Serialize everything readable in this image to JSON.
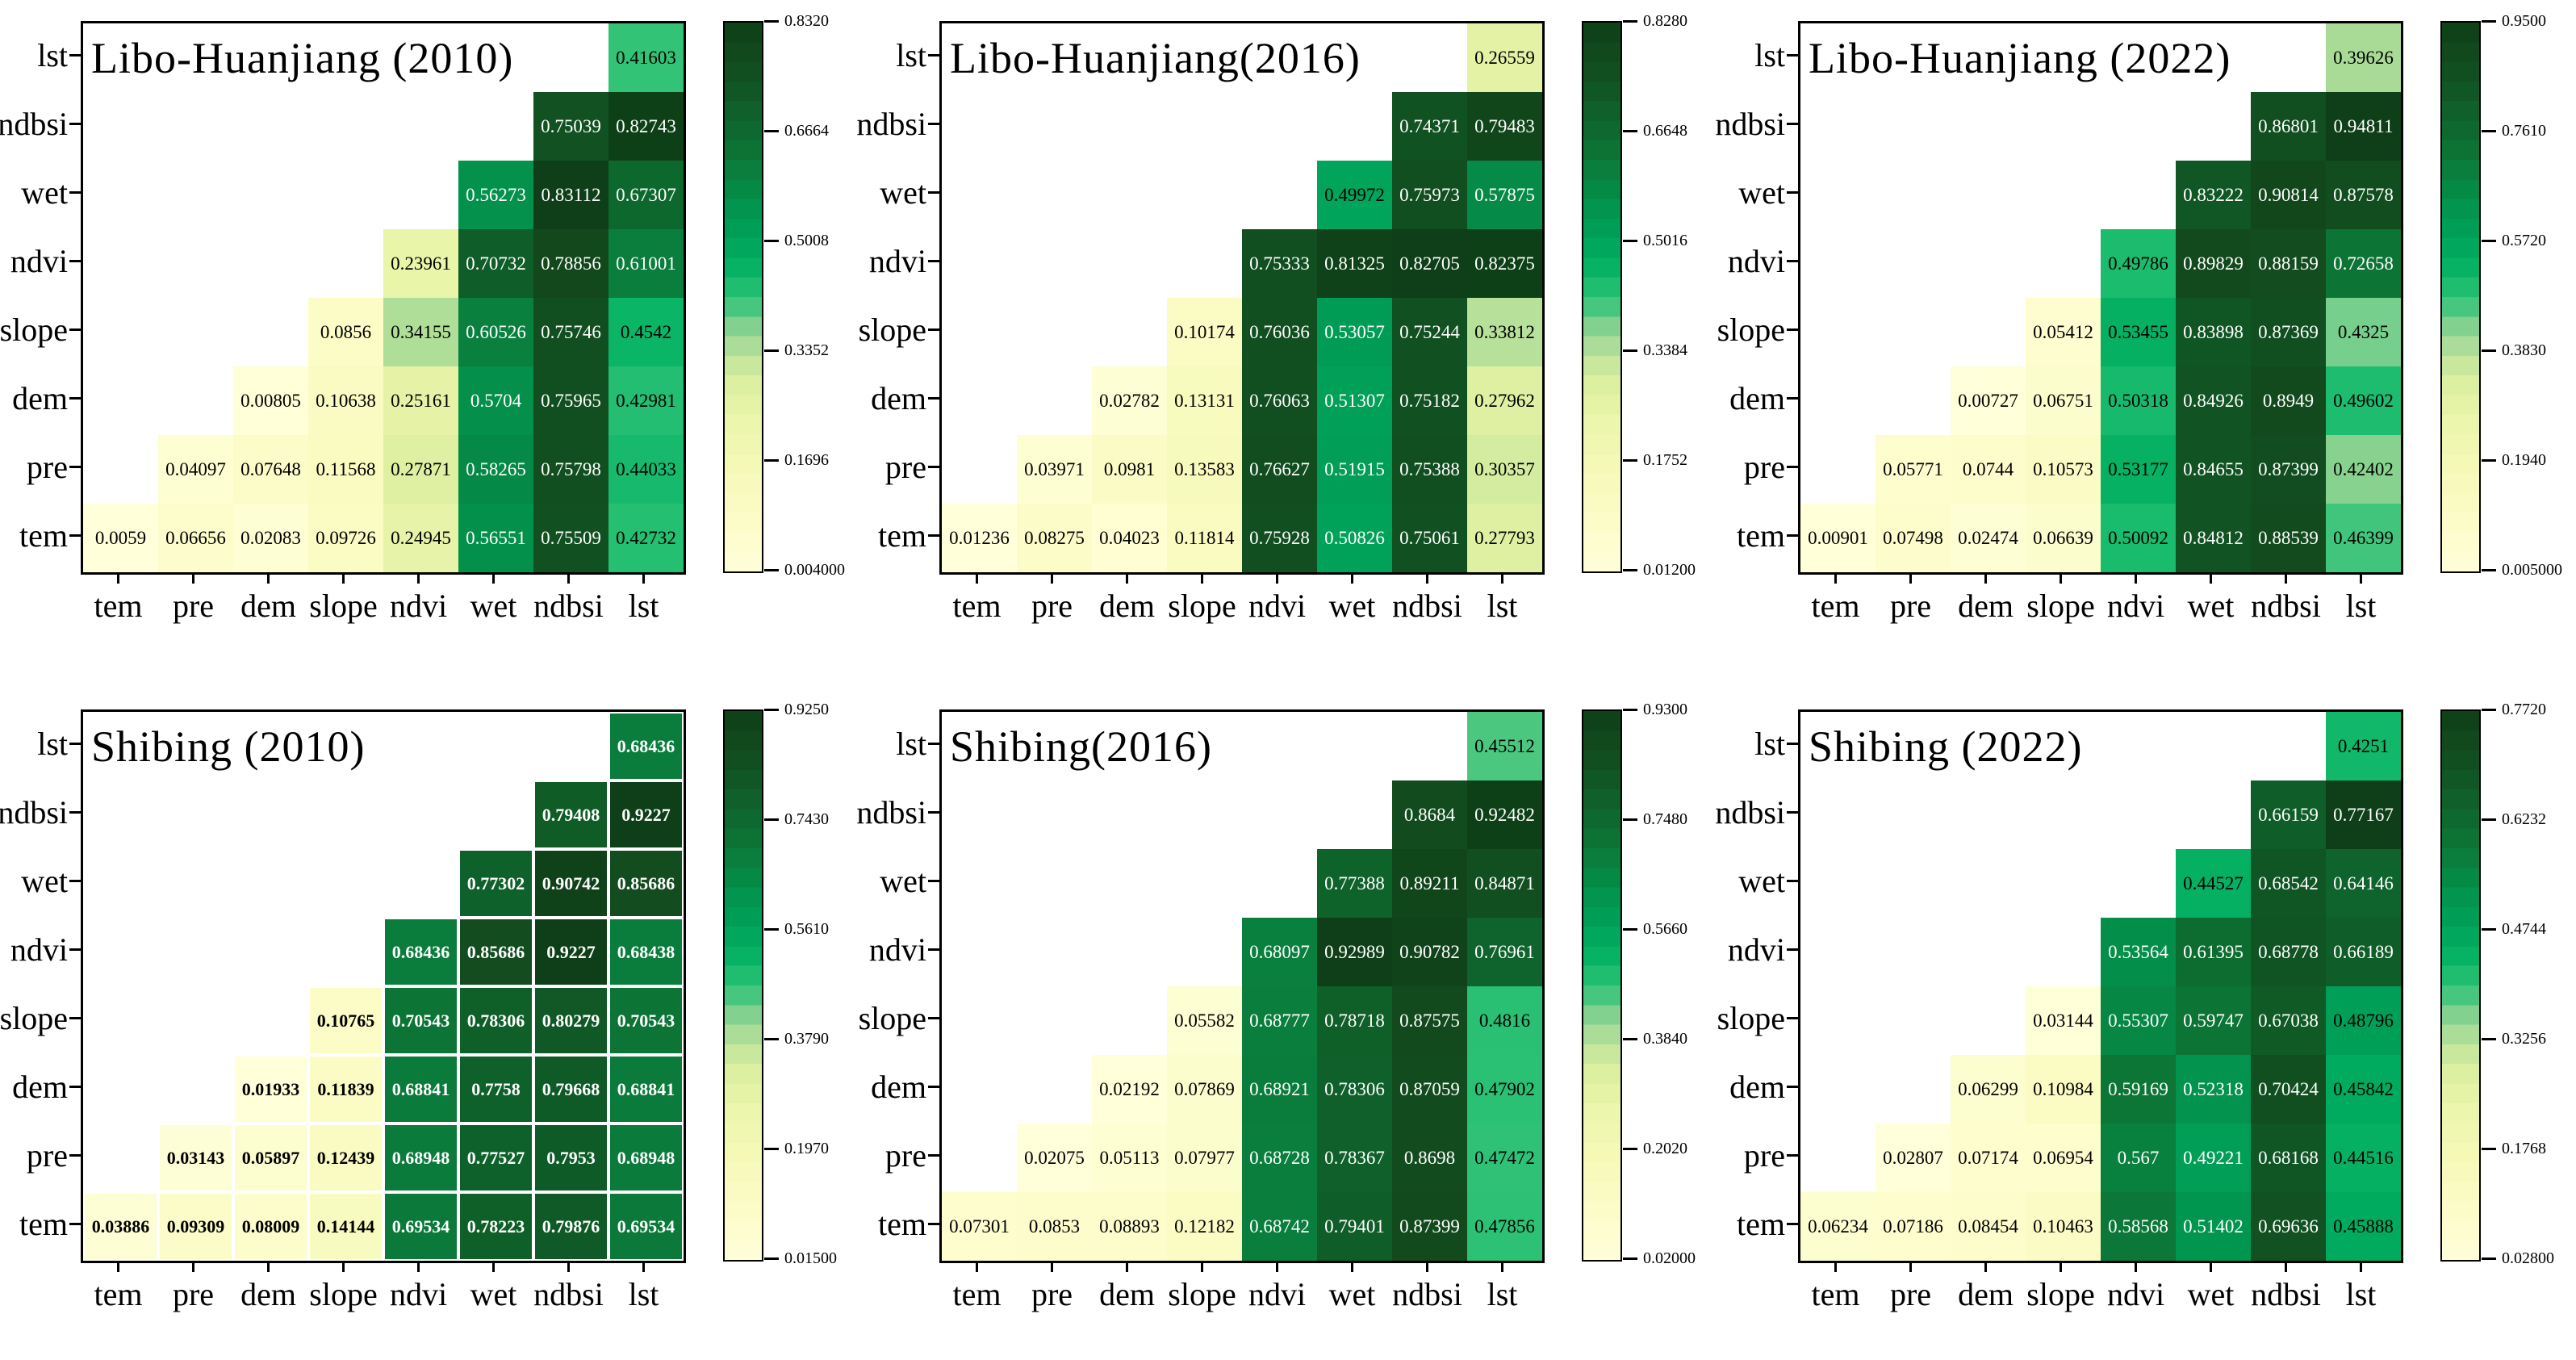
{
  "chart_data": {
    "type": "heatmap",
    "layout": "2 rows x 3 columns of lower-triangle correlation heatmaps, each with its own colorbar on the right",
    "x_labels": [
      "tem",
      "pre",
      "dem",
      "slope",
      "ndvi",
      "wet",
      "ndbsi",
      "lst"
    ],
    "y_labels": [
      "lst",
      "ndbsi",
      "wet",
      "ndvi",
      "slope",
      "dem",
      "pre",
      "tem"
    ],
    "colormap": {
      "name": "yellow-to-green (YlGn-like, banded)",
      "bands": 28,
      "anchors": [
        [
          0.0,
          "#ffffd9"
        ],
        [
          0.1,
          "#fbfcc6"
        ],
        [
          0.2,
          "#f4f9b5"
        ],
        [
          0.28,
          "#eaf5aa"
        ],
        [
          0.34,
          "#ddefa1"
        ],
        [
          0.37,
          "#cce99e"
        ],
        [
          0.4,
          "#b7e09a"
        ],
        [
          0.44,
          "#8ed392"
        ],
        [
          0.47,
          "#55c983"
        ],
        [
          0.5,
          "#2fc276"
        ],
        [
          0.54,
          "#0cb667"
        ],
        [
          0.58,
          "#00aa5e"
        ],
        [
          0.63,
          "#009c55"
        ],
        [
          0.68,
          "#03904b"
        ],
        [
          0.72,
          "#088240"
        ],
        [
          0.76,
          "#0c7536"
        ],
        [
          0.8,
          "#0d6a2f"
        ],
        [
          0.85,
          "#0f5d28"
        ],
        [
          0.9,
          "#115122"
        ],
        [
          0.95,
          "#12481c"
        ],
        [
          1.0,
          "#0e3f18"
        ]
      ]
    },
    "annotation_text_colors": {
      "dark_cells": "#ffffff",
      "light_cells": "#000000"
    },
    "panels": [
      {
        "title": "Libo-Huanjiang (2010)",
        "vmin": 0.004,
        "vmax": 0.832,
        "white_text_min_norm": 0.6,
        "grid_lines": false,
        "bold_values": false,
        "colorbar_ticks": [
          "0.8320",
          "0.6664",
          "0.5008",
          "0.3352",
          "0.1696",
          "0.004000"
        ],
        "rows": [
          {
            "label": "lst",
            "values": [
              null,
              null,
              null,
              null,
              null,
              null,
              null,
              "0.41603"
            ]
          },
          {
            "label": "ndbsi",
            "values": [
              null,
              null,
              null,
              null,
              null,
              null,
              "0.75039",
              "0.82743"
            ]
          },
          {
            "label": "wet",
            "values": [
              null,
              null,
              null,
              null,
              null,
              "0.56273",
              "0.83112",
              "0.67307"
            ]
          },
          {
            "label": "ndvi",
            "values": [
              null,
              null,
              null,
              null,
              "0.23961",
              "0.70732",
              "0.78856",
              "0.61001"
            ]
          },
          {
            "label": "slope",
            "values": [
              null,
              null,
              null,
              "0.0856",
              "0.34155",
              "0.60526",
              "0.75746",
              "0.4542"
            ]
          },
          {
            "label": "dem",
            "values": [
              null,
              null,
              "0.00805",
              "0.10638",
              "0.25161",
              "0.5704",
              "0.75965",
              "0.42981"
            ]
          },
          {
            "label": "pre",
            "values": [
              null,
              "0.04097",
              "0.07648",
              "0.11568",
              "0.27871",
              "0.58265",
              "0.75798",
              "0.44033"
            ]
          },
          {
            "label": "tem",
            "values": [
              "0.0059",
              "0.06656",
              "0.02083",
              "0.09726",
              "0.24945",
              "0.56551",
              "0.75509",
              "0.42732"
            ]
          }
        ]
      },
      {
        "title": "Libo-Huanjiang(2016)",
        "vmin": 0.012,
        "vmax": 0.828,
        "white_text_min_norm": 0.6,
        "grid_lines": false,
        "bold_values": false,
        "colorbar_ticks": [
          "0.8280",
          "0.6648",
          "0.5016",
          "0.3384",
          "0.1752",
          "0.01200"
        ],
        "rows": [
          {
            "label": "lst",
            "values": [
              null,
              null,
              null,
              null,
              null,
              null,
              null,
              "0.26559"
            ]
          },
          {
            "label": "ndbsi",
            "values": [
              null,
              null,
              null,
              null,
              null,
              null,
              "0.74371",
              "0.79483"
            ]
          },
          {
            "label": "wet",
            "values": [
              null,
              null,
              null,
              null,
              null,
              "0.49972",
              "0.75973",
              "0.57875"
            ]
          },
          {
            "label": "ndvi",
            "values": [
              null,
              null,
              null,
              null,
              "0.75333",
              "0.81325",
              "0.82705",
              "0.82375"
            ]
          },
          {
            "label": "slope",
            "values": [
              null,
              null,
              null,
              "0.10174",
              "0.76036",
              "0.53057",
              "0.75244",
              "0.33812"
            ]
          },
          {
            "label": "dem",
            "values": [
              null,
              null,
              "0.02782",
              "0.13131",
              "0.76063",
              "0.51307",
              "0.75182",
              "0.27962"
            ]
          },
          {
            "label": "pre",
            "values": [
              null,
              "0.03971",
              "0.0981",
              "0.13583",
              "0.76627",
              "0.51915",
              "0.75388",
              "0.30357"
            ]
          },
          {
            "label": "tem",
            "values": [
              "0.01236",
              "0.08275",
              "0.04023",
              "0.11814",
              "0.75928",
              "0.50826",
              "0.75061",
              "0.27793"
            ]
          }
        ]
      },
      {
        "title": "Libo-Huanjiang (2022)",
        "vmin": 0.005,
        "vmax": 0.95,
        "white_text_min_norm": 0.6,
        "grid_lines": false,
        "bold_values": false,
        "colorbar_ticks": [
          "0.9500",
          "0.7610",
          "0.5720",
          "0.3830",
          "0.1940",
          "0.005000"
        ],
        "rows": [
          {
            "label": "lst",
            "values": [
              null,
              null,
              null,
              null,
              null,
              null,
              null,
              "0.39626"
            ]
          },
          {
            "label": "ndbsi",
            "values": [
              null,
              null,
              null,
              null,
              null,
              null,
              "0.86801",
              "0.94811"
            ]
          },
          {
            "label": "wet",
            "values": [
              null,
              null,
              null,
              null,
              null,
              "0.83222",
              "0.90814",
              "0.87578"
            ]
          },
          {
            "label": "ndvi",
            "values": [
              null,
              null,
              null,
              null,
              "0.49786",
              "0.89829",
              "0.88159",
              "0.72658"
            ]
          },
          {
            "label": "slope",
            "values": [
              null,
              null,
              null,
              "0.05412",
              "0.53455",
              "0.83898",
              "0.87369",
              "0.4325"
            ]
          },
          {
            "label": "dem",
            "values": [
              null,
              null,
              "0.00727",
              "0.06751",
              "0.50318",
              "0.84926",
              "0.8949",
              "0.49602"
            ]
          },
          {
            "label": "pre",
            "values": [
              null,
              "0.05771",
              "0.0744",
              "0.10573",
              "0.53177",
              "0.84655",
              "0.87399",
              "0.42402"
            ]
          },
          {
            "label": "tem",
            "values": [
              "0.00901",
              "0.07498",
              "0.02474",
              "0.06639",
              "0.50092",
              "0.84812",
              "0.88539",
              "0.46399"
            ]
          }
        ]
      },
      {
        "title": "Shibing (2010)",
        "vmin": 0.015,
        "vmax": 0.925,
        "white_text_min_norm": 0.6,
        "grid_lines": true,
        "bold_values": true,
        "colorbar_ticks": [
          "0.9250",
          "0.7430",
          "0.5610",
          "0.3790",
          "0.1970",
          "0.01500"
        ],
        "rows": [
          {
            "label": "lst",
            "values": [
              null,
              null,
              null,
              null,
              null,
              null,
              null,
              "0.68436"
            ]
          },
          {
            "label": "ndbsi",
            "values": [
              null,
              null,
              null,
              null,
              null,
              null,
              "0.79408",
              "0.9227"
            ]
          },
          {
            "label": "wet",
            "values": [
              null,
              null,
              null,
              null,
              null,
              "0.77302",
              "0.90742",
              "0.85686"
            ]
          },
          {
            "label": "ndvi",
            "values": [
              null,
              null,
              null,
              null,
              "0.68436",
              "0.85686",
              "0.9227",
              "0.68438"
            ]
          },
          {
            "label": "slope",
            "values": [
              null,
              null,
              null,
              "0.10765",
              "0.70543",
              "0.78306",
              "0.80279",
              "0.70543"
            ]
          },
          {
            "label": "dem",
            "values": [
              null,
              null,
              "0.01933",
              "0.11839",
              "0.68841",
              "0.7758",
              "0.79668",
              "0.68841"
            ]
          },
          {
            "label": "pre",
            "values": [
              null,
              "0.03143",
              "0.05897",
              "0.12439",
              "0.68948",
              "0.77527",
              "0.7953",
              "0.68948"
            ]
          },
          {
            "label": "tem",
            "values": [
              "0.03886",
              "0.09309",
              "0.08009",
              "0.14144",
              "0.69534",
              "0.78223",
              "0.79876",
              "0.69534"
            ]
          }
        ]
      },
      {
        "title": "Shibing(2016)",
        "vmin": 0.02,
        "vmax": 0.93,
        "white_text_min_norm": 0.6,
        "grid_lines": false,
        "bold_values": false,
        "colorbar_ticks": [
          "0.9300",
          "0.7480",
          "0.5660",
          "0.3840",
          "0.2020",
          "0.02000"
        ],
        "rows": [
          {
            "label": "lst",
            "values": [
              null,
              null,
              null,
              null,
              null,
              null,
              null,
              "0.45512"
            ]
          },
          {
            "label": "ndbsi",
            "values": [
              null,
              null,
              null,
              null,
              null,
              null,
              "0.8684",
              "0.92482"
            ]
          },
          {
            "label": "wet",
            "values": [
              null,
              null,
              null,
              null,
              null,
              "0.77388",
              "0.89211",
              "0.84871"
            ]
          },
          {
            "label": "ndvi",
            "values": [
              null,
              null,
              null,
              null,
              "0.68097",
              "0.92989",
              "0.90782",
              "0.76961"
            ]
          },
          {
            "label": "slope",
            "values": [
              null,
              null,
              null,
              "0.05582",
              "0.68777",
              "0.78718",
              "0.87575",
              "0.4816"
            ]
          },
          {
            "label": "dem",
            "values": [
              null,
              null,
              "0.02192",
              "0.07869",
              "0.68921",
              "0.78306",
              "0.87059",
              "0.47902"
            ]
          },
          {
            "label": "pre",
            "values": [
              null,
              "0.02075",
              "0.05113",
              "0.07977",
              "0.68728",
              "0.78367",
              "0.8698",
              "0.47472"
            ]
          },
          {
            "label": "tem",
            "values": [
              "0.07301",
              "0.0853",
              "0.08893",
              "0.12182",
              "0.68742",
              "0.79401",
              "0.87399",
              "0.47856"
            ]
          }
        ]
      },
      {
        "title": "Shibing (2022)",
        "vmin": 0.028,
        "vmax": 0.772,
        "white_text_min_norm": 0.62,
        "grid_lines": false,
        "bold_values": false,
        "colorbar_ticks": [
          "0.7720",
          "0.6232",
          "0.4744",
          "0.3256",
          "0.1768",
          "0.02800"
        ],
        "rows": [
          {
            "label": "lst",
            "values": [
              null,
              null,
              null,
              null,
              null,
              null,
              null,
              "0.4251"
            ]
          },
          {
            "label": "ndbsi",
            "values": [
              null,
              null,
              null,
              null,
              null,
              null,
              "0.66159",
              "0.77167"
            ]
          },
          {
            "label": "wet",
            "values": [
              null,
              null,
              null,
              null,
              null,
              "0.44527",
              "0.68542",
              "0.64146"
            ]
          },
          {
            "label": "ndvi",
            "values": [
              null,
              null,
              null,
              null,
              "0.53564",
              "0.61395",
              "0.68778",
              "0.66189"
            ]
          },
          {
            "label": "slope",
            "values": [
              null,
              null,
              null,
              "0.03144",
              "0.55307",
              "0.59747",
              "0.67038",
              "0.48796"
            ]
          },
          {
            "label": "dem",
            "values": [
              null,
              null,
              "0.06299",
              "0.10984",
              "0.59169",
              "0.52318",
              "0.70424",
              "0.45842"
            ]
          },
          {
            "label": "pre",
            "values": [
              null,
              "0.02807",
              "0.07174",
              "0.06954",
              "0.567",
              "0.49221",
              "0.68168",
              "0.44516"
            ]
          },
          {
            "label": "tem",
            "values": [
              "0.06234",
              "0.07186",
              "0.08454",
              "0.10463",
              "0.58568",
              "0.51402",
              "0.69636",
              "0.45888"
            ]
          }
        ]
      }
    ]
  }
}
